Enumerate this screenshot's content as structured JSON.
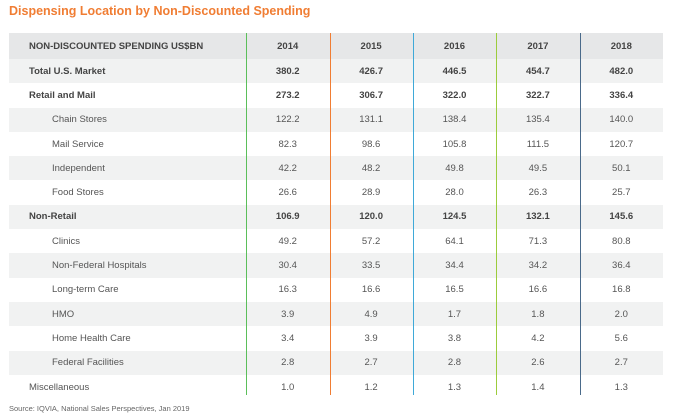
{
  "title": "Dispensing Location by Non-Discounted Spending",
  "source": "Source: IQVIA, National Sales Perspectives, Jan 2019",
  "colors": {
    "title": "#f07d33",
    "line_2014": "#5bbf5a",
    "line_2015": "#f07d33",
    "line_2016": "#3fa9d8",
    "line_2017": "#9ccc3c",
    "line_2018": "#4a6a8a"
  },
  "chart_data": {
    "type": "table",
    "title": "Dispensing Location by Non-Discounted Spending",
    "header": [
      "NON-DISCOUNTED SPENDING US$BN",
      "2014",
      "2015",
      "2016",
      "2017",
      "2018"
    ],
    "rows": [
      {
        "label": "Total U.S. Market",
        "values": [
          "380.2",
          "426.7",
          "446.5",
          "454.7",
          "482.0"
        ]
      },
      {
        "label": "Retail and Mail",
        "values": [
          "273.2",
          "306.7",
          "322.0",
          "322.7",
          "336.4"
        ]
      },
      {
        "label": "Chain Stores",
        "values": [
          "122.2",
          "131.1",
          "138.4",
          "135.4",
          "140.0"
        ]
      },
      {
        "label": "Mail Service",
        "values": [
          "82.3",
          "98.6",
          "105.8",
          "111.5",
          "120.7"
        ]
      },
      {
        "label": "Independent",
        "values": [
          "42.2",
          "48.2",
          "49.8",
          "49.5",
          "50.1"
        ]
      },
      {
        "label": "Food Stores",
        "values": [
          "26.6",
          "28.9",
          "28.0",
          "26.3",
          "25.7"
        ]
      },
      {
        "label": "Non-Retail",
        "values": [
          "106.9",
          "120.0",
          "124.5",
          "132.1",
          "145.6"
        ]
      },
      {
        "label": "Clinics",
        "values": [
          "49.2",
          "57.2",
          "64.1",
          "71.3",
          "80.8"
        ]
      },
      {
        "label": "Non-Federal Hospitals",
        "values": [
          "30.4",
          "33.5",
          "34.4",
          "34.2",
          "36.4"
        ]
      },
      {
        "label": "Long-term Care",
        "values": [
          "16.3",
          "16.6",
          "16.5",
          "16.6",
          "16.8"
        ]
      },
      {
        "label": "HMO",
        "values": [
          "3.9",
          "4.9",
          "1.7",
          "1.8",
          "2.0"
        ]
      },
      {
        "label": "Home Health Care",
        "values": [
          "3.4",
          "3.9",
          "3.8",
          "4.2",
          "5.6"
        ]
      },
      {
        "label": "Federal Facilities",
        "values": [
          "2.8",
          "2.7",
          "2.8",
          "2.6",
          "2.7"
        ]
      },
      {
        "label": "Miscellaneous",
        "values": [
          "1.0",
          "1.2",
          "1.3",
          "1.4",
          "1.3"
        ]
      }
    ]
  }
}
